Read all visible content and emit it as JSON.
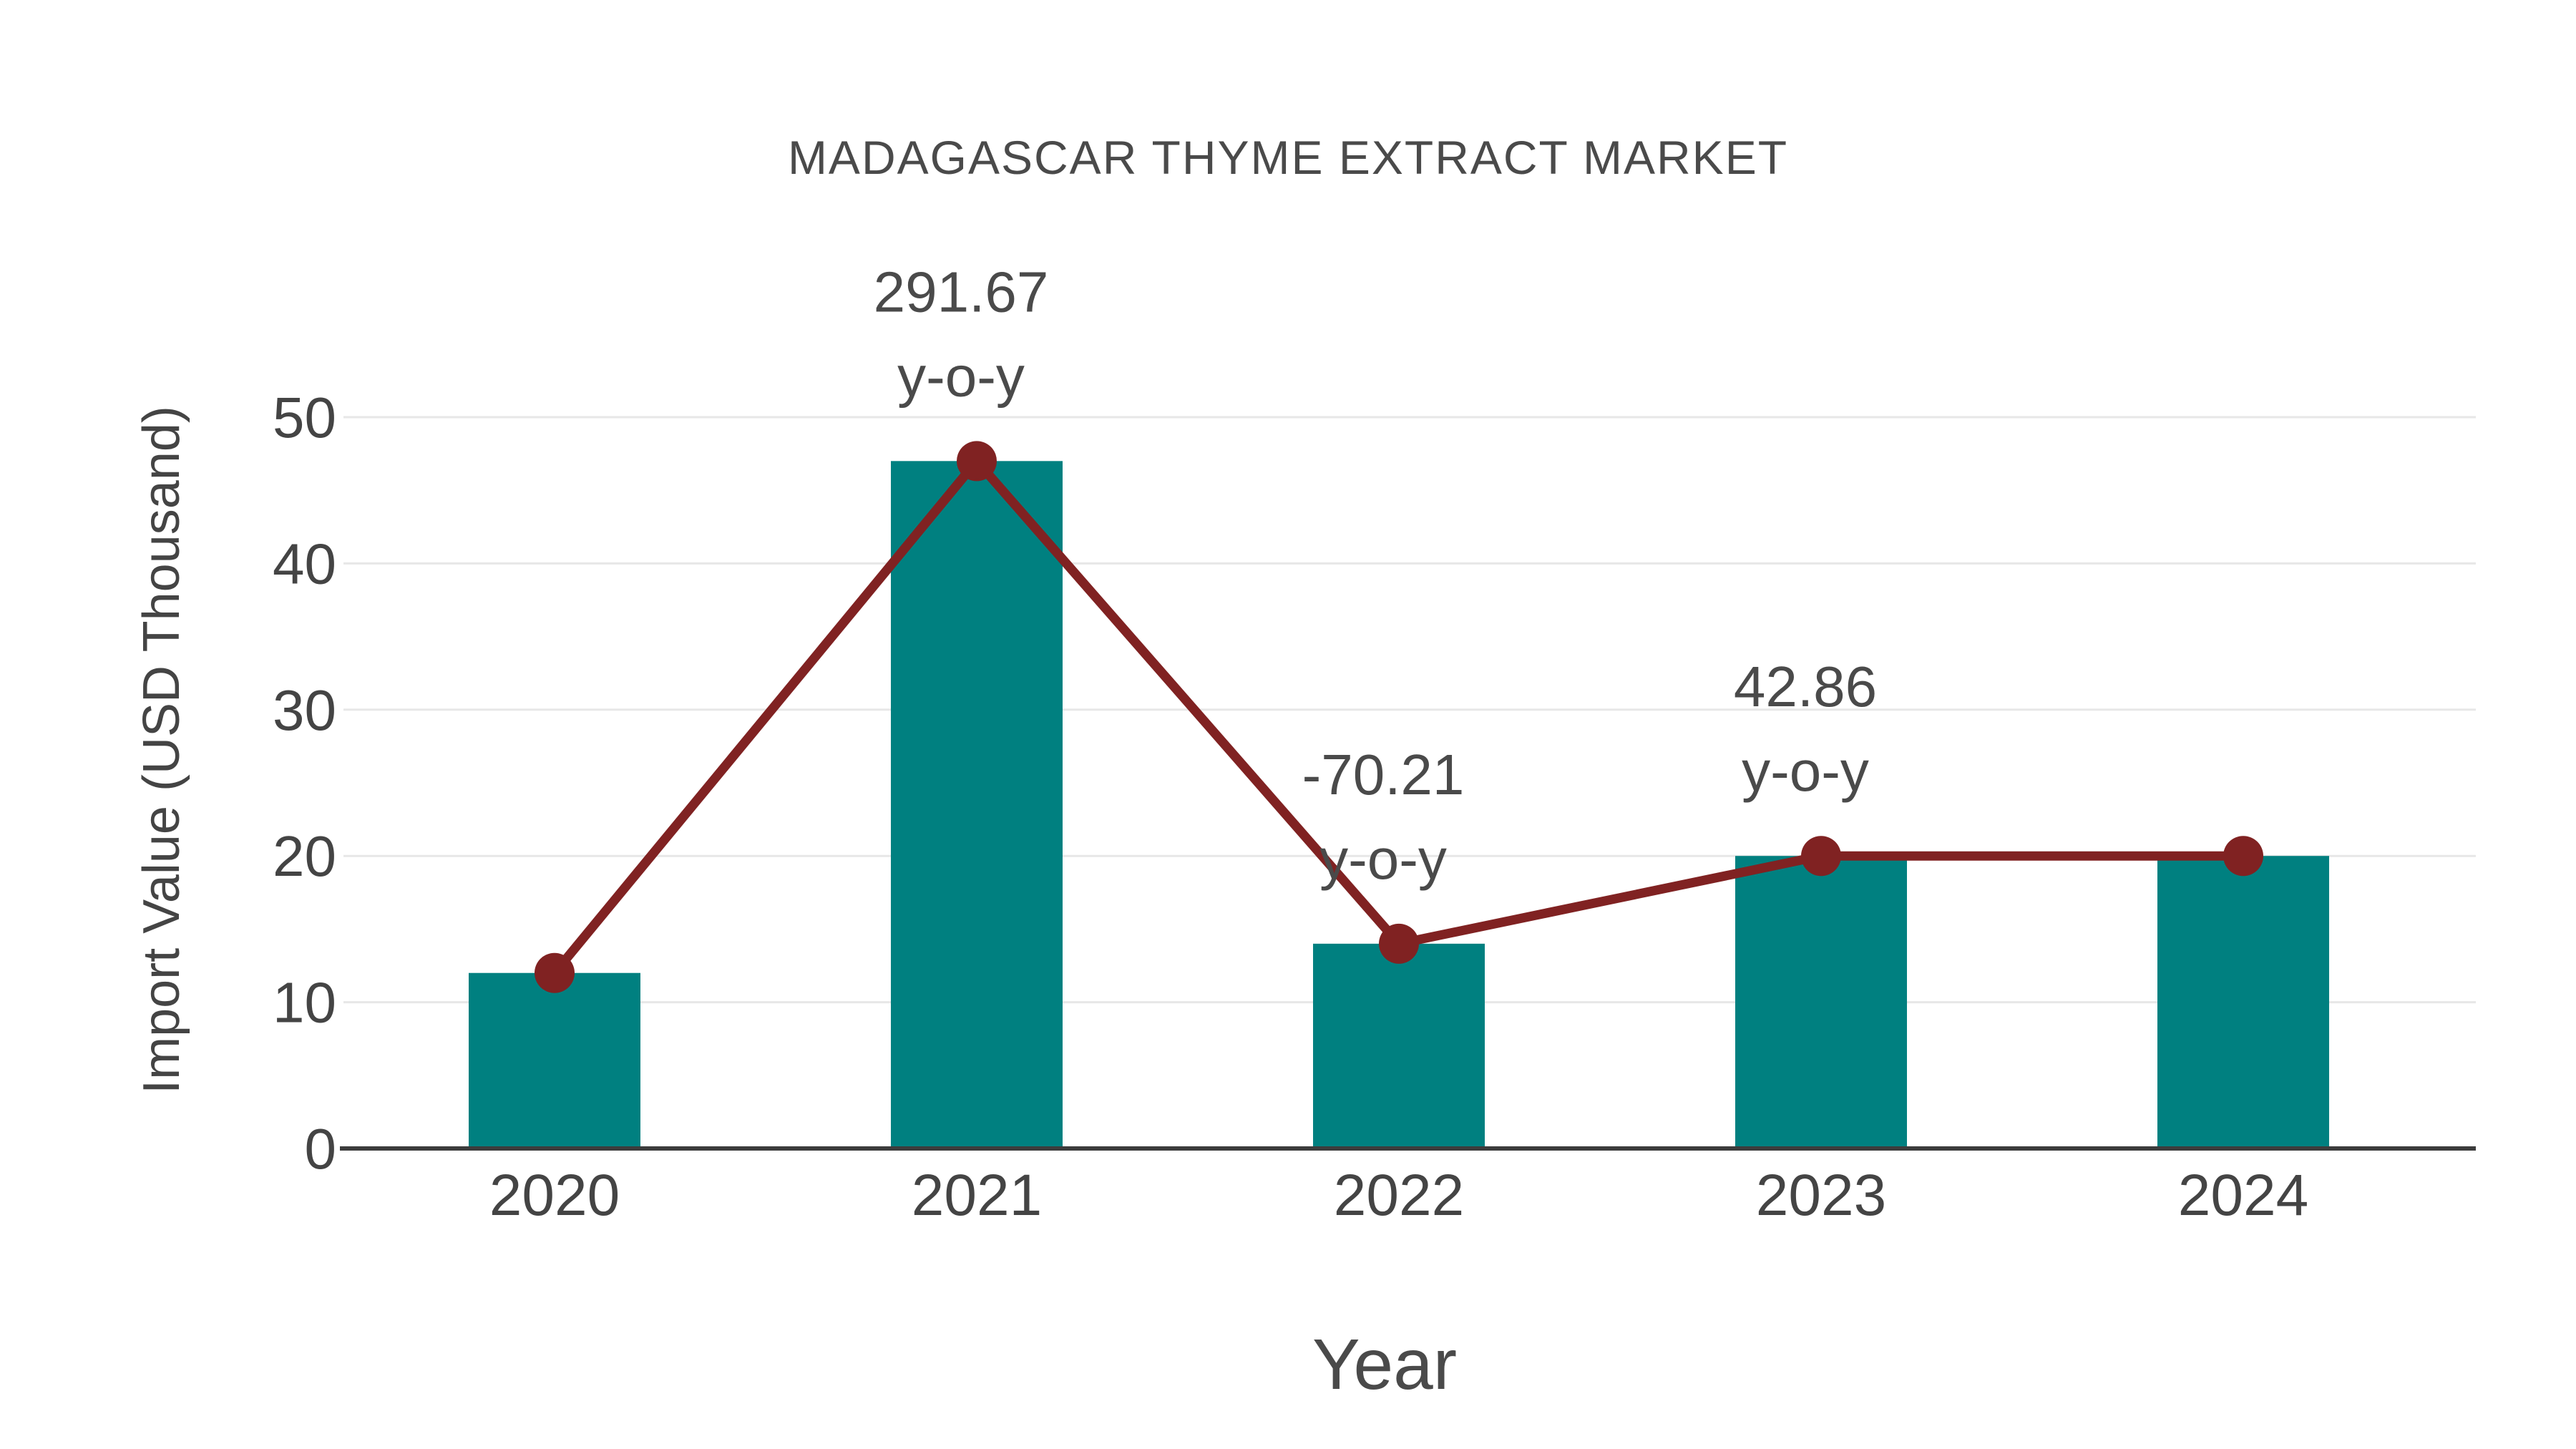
{
  "chart_data": {
    "type": "bar",
    "title": "MADAGASCAR THYME EXTRACT MARKET",
    "xlabel": "Year",
    "ylabel": "Import Value (USD Thousand)",
    "categories": [
      "2020",
      "2021",
      "2022",
      "2023",
      "2024"
    ],
    "series": [
      {
        "name": "import-value-bars",
        "type": "bar",
        "color": "#008080",
        "values": [
          12,
          47,
          14,
          20,
          20
        ]
      },
      {
        "name": "import-value-trend-line",
        "type": "line",
        "color": "#802222",
        "marker": "circle",
        "values": [
          12,
          47,
          14,
          20,
          20
        ]
      }
    ],
    "yticks": [
      0,
      10,
      20,
      30,
      40,
      50
    ],
    "ylim": [
      0,
      55
    ],
    "grid": true,
    "legend_position": "none",
    "annotations": [
      {
        "category": "2021",
        "line1": "291.67",
        "line2": "y-o-y"
      },
      {
        "category": "2022",
        "line1": "-70.21",
        "line2": "y-o-y"
      },
      {
        "category": "2023",
        "line1": "42.86",
        "line2": "y-o-y"
      }
    ]
  },
  "colors": {
    "bar": "#008080",
    "line": "#802222",
    "grid": "#e7e7e7",
    "axis": "#3c3c3c",
    "text": "#444444"
  }
}
